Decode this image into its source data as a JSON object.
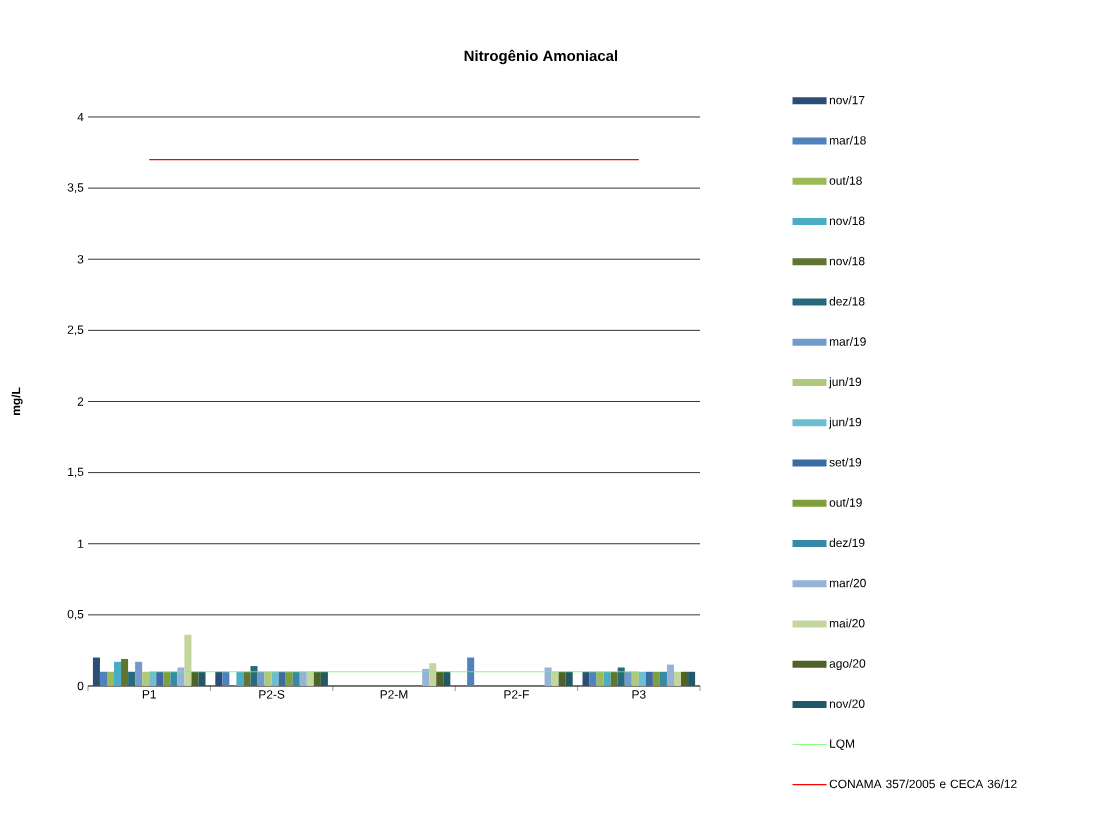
{
  "chart_data": {
    "type": "bar",
    "title": "Nitrogênio Amoniacal",
    "ylabel": "mg/L",
    "categories": [
      "P1",
      "P2-S",
      "P2-M",
      "P2-F",
      "P3"
    ],
    "series": [
      {
        "name": "nov/17",
        "color": "#2c4d75",
        "values": [
          0.2,
          0.1,
          null,
          null,
          0.1
        ]
      },
      {
        "name": "mar/18",
        "color": "#4f81bd",
        "values": [
          0.1,
          0.1,
          null,
          0.2,
          0.1
        ]
      },
      {
        "name": "out/18",
        "color": "#9bbb59",
        "values": [
          0.1,
          null,
          null,
          null,
          0.1
        ]
      },
      {
        "name": "nov/18",
        "color": "#4bacc6",
        "values": [
          0.17,
          0.1,
          null,
          null,
          0.1
        ]
      },
      {
        "name": "nov/18",
        "color": "#5f7530",
        "values": [
          0.19,
          0.1,
          null,
          null,
          0.1
        ]
      },
      {
        "name": "dez/18",
        "color": "#276a7c",
        "values": [
          0.1,
          0.14,
          null,
          null,
          0.13
        ]
      },
      {
        "name": "mar/19",
        "color": "#729aca",
        "values": [
          0.17,
          0.1,
          null,
          null,
          0.1
        ]
      },
      {
        "name": "jun/19",
        "color": "#afc97a",
        "values": [
          0.1,
          0.1,
          null,
          null,
          0.1
        ]
      },
      {
        "name": "jun/19",
        "color": "#6fbdd1",
        "values": [
          0.1,
          0.1,
          null,
          null,
          0.1
        ]
      },
      {
        "name": "set/19",
        "color": "#3c6aa5",
        "values": [
          0.1,
          0.1,
          null,
          null,
          0.1
        ]
      },
      {
        "name": "out/19",
        "color": "#7f9f3f",
        "values": [
          0.1,
          0.1,
          null,
          null,
          0.1
        ]
      },
      {
        "name": "dez/19",
        "color": "#358ba5",
        "values": [
          0.1,
          0.1,
          null,
          null,
          0.1
        ]
      },
      {
        "name": "mar/20",
        "color": "#95b3d7",
        "values": [
          0.13,
          0.1,
          0.12,
          0.13,
          0.15
        ]
      },
      {
        "name": "mai/20",
        "color": "#c3d69b",
        "values": [
          0.36,
          0.1,
          0.16,
          0.1,
          0.1
        ]
      },
      {
        "name": "ago/20",
        "color": "#4f6228",
        "values": [
          0.1,
          0.1,
          0.1,
          0.1,
          0.1
        ]
      },
      {
        "name": "nov/20",
        "color": "#215968",
        "values": [
          0.1,
          0.1,
          0.1,
          0.1,
          0.1
        ]
      },
      {
        "name": "LQM",
        "type": "line",
        "color": "#66ff66",
        "values": [
          0.1,
          0.1,
          0.1,
          0.1,
          0.1
        ]
      },
      {
        "name": "CONAMA 357/2005 e CECA 36/12",
        "type": "line",
        "color": "#ff0000",
        "values": [
          3.7,
          3.7,
          3.7,
          3.7,
          3.7
        ]
      }
    ],
    "ylim": [
      0,
      4
    ],
    "yticks": [
      0,
      {
        "value": 0.5,
        "label": "0,5"
      },
      1,
      {
        "value": 1.5,
        "label": "1,5"
      },
      2,
      {
        "value": 2.5,
        "label": "2,5"
      },
      3,
      {
        "value": 3.5,
        "label": "3,5"
      },
      4
    ],
    "grid": "y",
    "legend": "right"
  }
}
